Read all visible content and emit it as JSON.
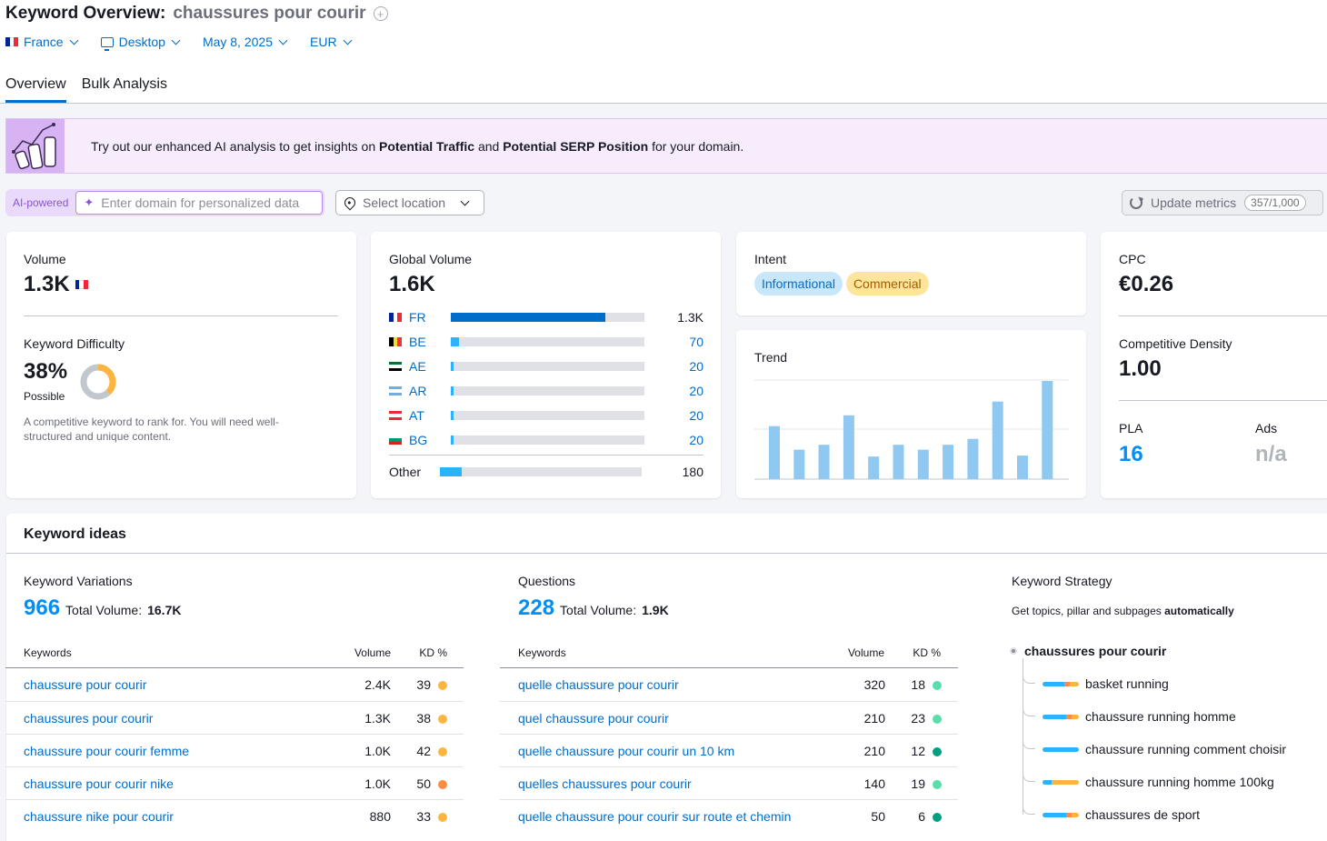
{
  "header": {
    "title": "Keyword Overview:",
    "keyword": "chaussures pour courir",
    "filters": {
      "country": "France",
      "device": "Desktop",
      "date": "May 8, 2025",
      "currency": "EUR"
    },
    "tabs": [
      {
        "label": "Overview",
        "active": true
      },
      {
        "label": "Bulk Analysis",
        "active": false
      }
    ]
  },
  "banner": {
    "text_pre": "Try out our enhanced AI analysis to get insights on",
    "bold1": "Potential Traffic",
    "text_mid": "and",
    "bold2": "Potential SERP Position",
    "text_post": "for your domain."
  },
  "ai_bar": {
    "label": "AI-powered",
    "placeholder": "Enter domain for personalized data",
    "location_placeholder": "Select location",
    "update_label": "Update metrics",
    "quota": "357/1,000"
  },
  "volume_card": {
    "label": "Volume",
    "value": "1.3K",
    "kd_label": "Keyword Difficulty",
    "kd_value": "38%",
    "kd_level": "Possible",
    "kd_percent": 38,
    "kd_desc": "A competitive keyword to rank for. You will need well-structured and unique content."
  },
  "global_volume": {
    "label": "Global Volume",
    "value": "1.6K",
    "countries": [
      {
        "code": "FR",
        "value": "1.3K",
        "fraction": 0.8,
        "colors": [
          "#002395",
          "#ffffff",
          "#ed2939"
        ],
        "orient": "v"
      },
      {
        "code": "BE",
        "value": "70",
        "fraction": 0.04,
        "colors": [
          "#000000",
          "#fdda24",
          "#ef3340"
        ],
        "orient": "v"
      },
      {
        "code": "AE",
        "value": "20",
        "fraction": 0.012,
        "colors": [
          "#00732f",
          "#ffffff",
          "#000000"
        ],
        "orient": "h"
      },
      {
        "code": "AR",
        "value": "20",
        "fraction": 0.012,
        "colors": [
          "#74acdf",
          "#ffffff",
          "#74acdf"
        ],
        "orient": "h"
      },
      {
        "code": "AT",
        "value": "20",
        "fraction": 0.012,
        "colors": [
          "#ed2939",
          "#ffffff",
          "#ed2939"
        ],
        "orient": "h"
      },
      {
        "code": "BG",
        "value": "20",
        "fraction": 0.012,
        "colors": [
          "#ffffff",
          "#00966e",
          "#d62612"
        ],
        "orient": "h"
      }
    ],
    "other": {
      "label": "Other",
      "value": "180",
      "fraction": 0.11
    }
  },
  "intent": {
    "label": "Intent",
    "items": [
      {
        "label": "Informational",
        "bg": "#c9e7fa",
        "fg": "#006dca"
      },
      {
        "label": "Commercial",
        "bg": "#fde59c",
        "fg": "#a45c00"
      }
    ]
  },
  "trend": {
    "label": "Trend",
    "values": [
      0.54,
      0.3,
      0.35,
      0.65,
      0.23,
      0.35,
      0.3,
      0.35,
      0.41,
      0.79,
      0.24,
      1.0
    ]
  },
  "cpc_card": {
    "cpc_label": "CPC",
    "cpc_value": "€0.26",
    "cd_label": "Competitive Density",
    "cd_value": "1.00",
    "pla_label": "PLA",
    "pla_value": "16",
    "ads_label": "Ads",
    "ads_value": "n/a"
  },
  "keyword_ideas": {
    "title": "Keyword ideas",
    "variations": {
      "label": "Keyword Variations",
      "count": "966",
      "total_label": "Total Volume:",
      "total_value": "16.7K",
      "columns": [
        "Keywords",
        "Volume",
        "KD %"
      ],
      "rows": [
        {
          "keyword": "chaussure pour courir",
          "volume": "2.4K",
          "kd": "39",
          "dot": "#fcb541"
        },
        {
          "keyword": "chaussures pour courir",
          "volume": "1.3K",
          "kd": "38",
          "dot": "#fcb541"
        },
        {
          "keyword": "chaussure pour courir femme",
          "volume": "1.0K",
          "kd": "42",
          "dot": "#fcb541"
        },
        {
          "keyword": "chaussure pour courir nike",
          "volume": "1.0K",
          "kd": "50",
          "dot": "#ff8c43"
        },
        {
          "keyword": "chaussure nike pour courir",
          "volume": "880",
          "kd": "33",
          "dot": "#fcb541"
        }
      ]
    },
    "questions": {
      "label": "Questions",
      "count": "228",
      "total_label": "Total Volume:",
      "total_value": "1.9K",
      "columns": [
        "Keywords",
        "Volume",
        "KD %"
      ],
      "rows": [
        {
          "keyword": "quelle chaussure pour courir",
          "volume": "320",
          "kd": "18",
          "dot": "#59ddaa"
        },
        {
          "keyword": "quel chaussure pour courir",
          "volume": "210",
          "kd": "23",
          "dot": "#59ddaa"
        },
        {
          "keyword": "quelle chaussure pour courir un 10 km",
          "volume": "210",
          "kd": "12",
          "dot": "#009f81"
        },
        {
          "keyword": "quelles chaussures pour courir",
          "volume": "140",
          "kd": "19",
          "dot": "#59ddaa"
        },
        {
          "keyword": "quelle chaussure pour courir sur route et chemin",
          "volume": "50",
          "kd": "6",
          "dot": "#009f81"
        }
      ]
    },
    "strategy": {
      "label": "Keyword Strategy",
      "desc_pre": "Get topics, pillar and subpages",
      "desc_bold": "automatically",
      "root": "chaussures pour courir",
      "items": [
        {
          "label": "basket running",
          "bar": [
            0.6,
            0.15,
            0.25
          ]
        },
        {
          "label": "chaussure running homme",
          "bar": [
            0.65,
            0.15,
            0.2
          ]
        },
        {
          "label": "chaussure running comment choisir",
          "bar": [
            1.0,
            0.0,
            0.0
          ]
        },
        {
          "label": "chaussure running homme 100kg",
          "bar": [
            0.25,
            0.0,
            0.75
          ]
        },
        {
          "label": "chaussures de sport",
          "bar": [
            0.65,
            0.15,
            0.2
          ]
        }
      ]
    }
  }
}
